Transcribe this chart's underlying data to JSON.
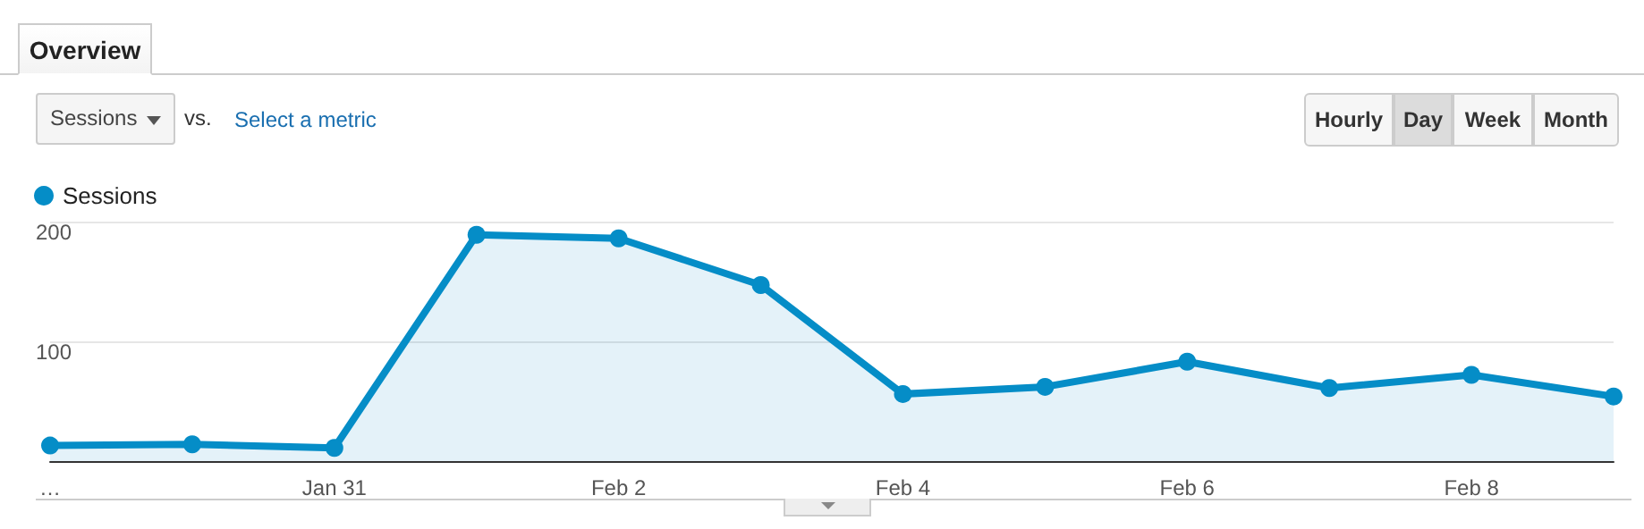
{
  "chart_data": {
    "type": "area",
    "categories": [
      "…",
      null,
      "Jan 31",
      null,
      "Feb 2",
      null,
      "Feb 4",
      null,
      "Feb 6",
      null,
      "Feb 8",
      null
    ],
    "series": [
      {
        "name": "Sessions",
        "color": "#058dc7",
        "values": [
          13,
          14,
          11,
          189,
          186,
          147,
          56,
          62,
          83,
          61,
          72,
          54
        ]
      }
    ],
    "ylim": [
      0,
      200
    ],
    "yticks": [
      100,
      200
    ],
    "grid": "y",
    "legend": "top left",
    "marker": "circle",
    "annotations": [
      "Overview",
      "Sessions",
      "vs.",
      "Select a metric",
      "Hourly",
      "Day",
      "Week",
      "Month"
    ]
  }
}
